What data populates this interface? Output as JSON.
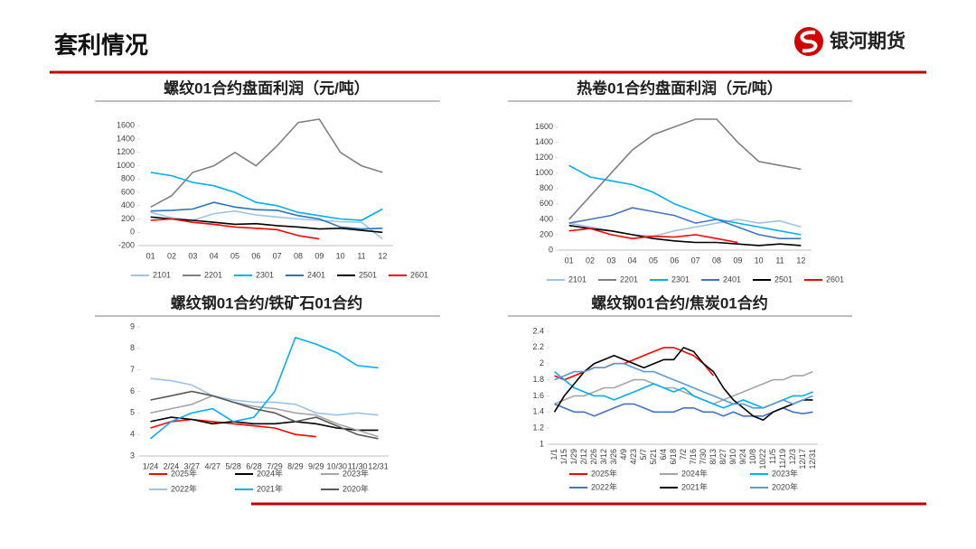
{
  "header": {
    "title": "套利情况",
    "logo": "银河期货"
  },
  "chart_data": [
    {
      "type": "line",
      "title": "螺纹01合约盘面利润（元/吨）",
      "categories": [
        "01",
        "02",
        "03",
        "04",
        "05",
        "06",
        "07",
        "08",
        "09",
        "10",
        "11",
        "12"
      ],
      "ylim": [
        -200,
        1700
      ],
      "yticks": [
        -200,
        0,
        200,
        400,
        600,
        800,
        1000,
        1200,
        1400,
        1600
      ],
      "series": [
        {
          "name": "2101",
          "color": "#9dc3e6",
          "values": [
            300,
            220,
            180,
            280,
            320,
            260,
            230,
            200,
            180,
            160,
            150,
            -100
          ]
        },
        {
          "name": "2201",
          "color": "#808080",
          "values": [
            380,
            550,
            900,
            1000,
            1200,
            1000,
            1300,
            1650,
            1700,
            1200,
            1000,
            900
          ]
        },
        {
          "name": "2301",
          "color": "#00b0f0",
          "values": [
            900,
            850,
            750,
            700,
            600,
            450,
            400,
            300,
            250,
            200,
            180,
            350
          ]
        },
        {
          "name": "2401",
          "color": "#2e75b6",
          "values": [
            320,
            330,
            350,
            450,
            380,
            340,
            330,
            250,
            200,
            80,
            50,
            60
          ]
        },
        {
          "name": "2501",
          "color": "#000000",
          "values": [
            230,
            200,
            180,
            150,
            120,
            130,
            100,
            80,
            50,
            60,
            30,
            0
          ]
        },
        {
          "name": "2601",
          "color": "#ff0000",
          "values": [
            180,
            200,
            150,
            120,
            80,
            60,
            40,
            -50,
            -100,
            null,
            null,
            null
          ]
        }
      ]
    },
    {
      "type": "line",
      "title": "热卷01合约盘面利润（元/吨）",
      "categories": [
        "01",
        "02",
        "03",
        "04",
        "05",
        "06",
        "07",
        "08",
        "09",
        "10",
        "11",
        "12"
      ],
      "ylim": [
        0,
        1700
      ],
      "yticks": [
        0,
        200,
        400,
        600,
        800,
        1000,
        1200,
        1400,
        1600
      ],
      "series": [
        {
          "name": "2101",
          "color": "#9dc3e6",
          "values": [
            350,
            300,
            250,
            200,
            180,
            250,
            300,
            350,
            400,
            350,
            380,
            300
          ]
        },
        {
          "name": "2201",
          "color": "#808080",
          "values": [
            400,
            700,
            1000,
            1300,
            1500,
            1600,
            1700,
            1700,
            1400,
            1150,
            1100,
            1050
          ]
        },
        {
          "name": "2301",
          "color": "#00b0f0",
          "values": [
            1100,
            950,
            900,
            850,
            750,
            600,
            500,
            400,
            350,
            300,
            250,
            200
          ]
        },
        {
          "name": "2401",
          "color": "#4472c4",
          "values": [
            350,
            400,
            450,
            550,
            500,
            450,
            350,
            400,
            300,
            200,
            150,
            150
          ]
        },
        {
          "name": "2501",
          "color": "#000000",
          "values": [
            320,
            280,
            250,
            200,
            150,
            120,
            100,
            100,
            80,
            60,
            80,
            60
          ]
        },
        {
          "name": "2601",
          "color": "#ff0000",
          "values": [
            250,
            280,
            200,
            150,
            180,
            170,
            200,
            150,
            100,
            null,
            null,
            null
          ]
        }
      ]
    },
    {
      "type": "line",
      "title": "螺纹钢01合约/铁矿石01合约",
      "categories": [
        "1/24",
        "2/24",
        "3/27",
        "4/27",
        "5/28",
        "6/28",
        "7/29",
        "8/29",
        "9/29",
        "10/30",
        "11/30",
        "12/31"
      ],
      "ylim": [
        3,
        9
      ],
      "yticks": [
        3,
        4,
        5,
        6,
        7,
        8,
        9
      ],
      "series": [
        {
          "name": "2025年",
          "color": "#ff0000",
          "values": [
            4.3,
            4.6,
            4.7,
            4.6,
            4.5,
            4.4,
            4.3,
            4.0,
            3.9,
            null,
            null,
            null
          ]
        },
        {
          "name": "2024年",
          "color": "#000000",
          "values": [
            4.6,
            4.8,
            4.7,
            4.5,
            4.6,
            4.5,
            4.5,
            4.6,
            4.5,
            4.3,
            4.2,
            4.2
          ]
        },
        {
          "name": "2023年",
          "color": "#a6a6a6",
          "values": [
            5.0,
            5.2,
            5.4,
            5.8,
            5.5,
            5.3,
            5.2,
            5.0,
            4.9,
            4.5,
            4.2,
            3.9
          ]
        },
        {
          "name": "2022年",
          "color": "#9dc3e6",
          "values": [
            6.6,
            6.5,
            6.3,
            5.8,
            5.6,
            5.5,
            5.5,
            5.4,
            5.0,
            4.9,
            5.0,
            4.9
          ]
        },
        {
          "name": "2021年",
          "color": "#00b0f0",
          "values": [
            3.8,
            4.6,
            5.0,
            5.2,
            4.6,
            4.8,
            6.0,
            8.5,
            8.2,
            7.8,
            7.2,
            7.1
          ]
        },
        {
          "name": "2020年",
          "color": "#595959",
          "values": [
            5.6,
            5.8,
            6.0,
            5.8,
            5.5,
            5.2,
            5.0,
            4.6,
            4.8,
            4.4,
            4.0,
            3.8
          ]
        }
      ]
    },
    {
      "type": "line",
      "title": "螺纹钢01合约/焦炭01合约",
      "categories": [
        "1/1",
        "1/15",
        "1/29",
        "2/12",
        "2/26",
        "3/12",
        "3/26",
        "4/9",
        "4/23",
        "5/7",
        "5/21",
        "6/4",
        "6/18",
        "7/2",
        "7/16",
        "7/30",
        "8/13",
        "8/27",
        "9/10",
        "9/24",
        "10/8",
        "10/22",
        "11/5",
        "11/19",
        "12/3",
        "12/17",
        "12/31"
      ],
      "ylim": [
        1,
        2.4
      ],
      "yticks": [
        1,
        1.2,
        1.4,
        1.6,
        1.8,
        2,
        2.2,
        2.4
      ],
      "series": [
        {
          "name": "2025年",
          "color": "#ff0000",
          "values": [
            1.85,
            1.8,
            1.85,
            1.9,
            1.95,
            1.95,
            2.0,
            2.0,
            2.05,
            2.1,
            2.15,
            2.2,
            2.2,
            2.15,
            2.1,
            2.0,
            1.85,
            null,
            null,
            null,
            null,
            null,
            null,
            null,
            null,
            null,
            null
          ]
        },
        {
          "name": "2024年",
          "color": "#a6a6a6",
          "values": [
            1.5,
            1.55,
            1.6,
            1.6,
            1.65,
            1.7,
            1.7,
            1.75,
            1.8,
            1.8,
            1.75,
            1.7,
            1.7,
            1.65,
            1.6,
            1.55,
            1.5,
            1.55,
            1.6,
            1.65,
            1.7,
            1.75,
            1.8,
            1.8,
            1.85,
            1.85,
            1.9
          ]
        },
        {
          "name": "2023年",
          "color": "#00b0f0",
          "values": [
            1.9,
            1.8,
            1.7,
            1.65,
            1.6,
            1.6,
            1.55,
            1.6,
            1.65,
            1.7,
            1.75,
            1.7,
            1.65,
            1.7,
            1.6,
            1.55,
            1.5,
            1.45,
            1.5,
            1.55,
            1.5,
            1.45,
            1.5,
            1.55,
            1.6,
            1.6,
            1.65
          ]
        },
        {
          "name": "2022年",
          "color": "#4472c4",
          "values": [
            1.5,
            1.45,
            1.4,
            1.4,
            1.35,
            1.4,
            1.45,
            1.5,
            1.5,
            1.45,
            1.4,
            1.4,
            1.4,
            1.45,
            1.45,
            1.4,
            1.4,
            1.35,
            1.4,
            1.35,
            1.35,
            1.35,
            1.4,
            1.45,
            1.4,
            1.38,
            1.4
          ]
        },
        {
          "name": "2021年",
          "color": "#000000",
          "values": [
            1.4,
            1.6,
            1.75,
            1.9,
            2.0,
            2.05,
            2.1,
            2.05,
            2.0,
            1.95,
            2.0,
            2.05,
            2.05,
            2.2,
            2.15,
            2.0,
            1.9,
            1.7,
            1.55,
            1.45,
            1.35,
            1.3,
            1.4,
            1.45,
            1.5,
            1.55,
            1.55
          ]
        },
        {
          "name": "2020年",
          "color": "#5b9bd5",
          "values": [
            1.8,
            1.85,
            1.9,
            1.9,
            1.95,
            1.95,
            2.0,
            2.0,
            1.95,
            1.9,
            1.9,
            1.85,
            1.8,
            1.75,
            1.7,
            1.65,
            1.6,
            1.55,
            1.5,
            1.5,
            1.45,
            1.45,
            1.5,
            1.55,
            1.5,
            1.55,
            1.6
          ]
        }
      ]
    }
  ]
}
